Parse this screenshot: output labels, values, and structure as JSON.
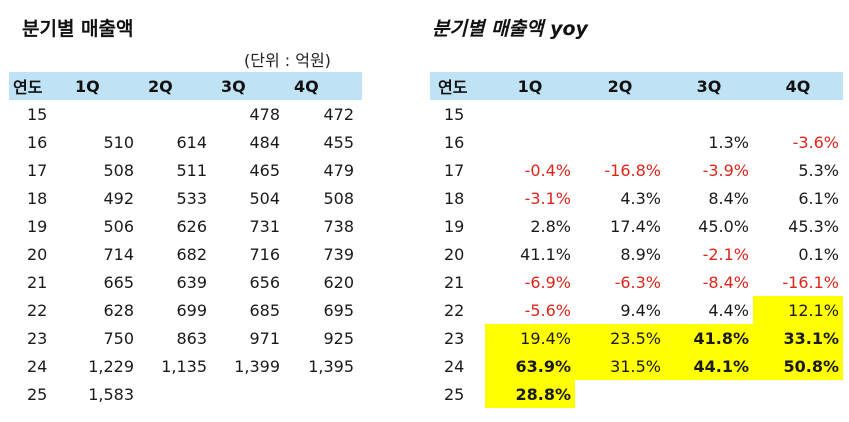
{
  "left": {
    "title": "분기별 매출액",
    "unit": "(단위 : 억원)",
    "headers": [
      "연도",
      "1Q",
      "2Q",
      "3Q",
      "4Q"
    ],
    "rows": [
      [
        "15",
        "",
        "",
        "478",
        "472"
      ],
      [
        "16",
        "510",
        "614",
        "484",
        "455"
      ],
      [
        "17",
        "508",
        "511",
        "465",
        "479"
      ],
      [
        "18",
        "492",
        "533",
        "504",
        "508"
      ],
      [
        "19",
        "506",
        "626",
        "731",
        "738"
      ],
      [
        "20",
        "714",
        "682",
        "716",
        "739"
      ],
      [
        "21",
        "665",
        "639",
        "656",
        "620"
      ],
      [
        "22",
        "628",
        "699",
        "685",
        "695"
      ],
      [
        "23",
        "750",
        "863",
        "971",
        "925"
      ],
      [
        "24",
        "1,229",
        "1,135",
        "1,399",
        "1,395"
      ],
      [
        "25",
        "1,583",
        "",
        "",
        ""
      ]
    ]
  },
  "right": {
    "title": "분기별 매출액 yoy",
    "headers": [
      "연도",
      "1Q",
      "2Q",
      "3Q",
      "4Q"
    ],
    "rows": [
      [
        "15",
        "",
        "",
        "",
        ""
      ],
      [
        "16",
        "",
        "",
        "1.3%",
        "-3.6%"
      ],
      [
        "17",
        "-0.4%",
        "-16.8%",
        "-3.9%",
        "5.3%"
      ],
      [
        "18",
        "-3.1%",
        "4.3%",
        "8.4%",
        "6.1%"
      ],
      [
        "19",
        "2.8%",
        "17.4%",
        "45.0%",
        "45.3%"
      ],
      [
        "20",
        "41.1%",
        "8.9%",
        "-2.1%",
        "0.1%"
      ],
      [
        "21",
        "-6.9%",
        "-6.3%",
        "-8.4%",
        "-16.1%"
      ],
      [
        "22",
        "-5.6%",
        "9.4%",
        "4.4%",
        "12.1%"
      ],
      [
        "23",
        "19.4%",
        "23.5%",
        "41.8%",
        "33.1%"
      ],
      [
        "24",
        "63.9%",
        "31.5%",
        "44.1%",
        "50.8%"
      ],
      [
        "25",
        "28.8%",
        "",
        "",
        ""
      ]
    ],
    "highlight_color": "#ffff00",
    "negative_color": "#e0251b",
    "highlighted_cells": [
      [
        7,
        4
      ],
      [
        8,
        1
      ],
      [
        8,
        2
      ],
      [
        8,
        3
      ],
      [
        8,
        4
      ],
      [
        9,
        1
      ],
      [
        9,
        2
      ],
      [
        9,
        3
      ],
      [
        9,
        4
      ],
      [
        10,
        1
      ]
    ],
    "bold_cells": [
      [
        8,
        3
      ],
      [
        8,
        4
      ],
      [
        9,
        1
      ],
      [
        9,
        3
      ],
      [
        9,
        4
      ],
      [
        10,
        1
      ]
    ]
  }
}
